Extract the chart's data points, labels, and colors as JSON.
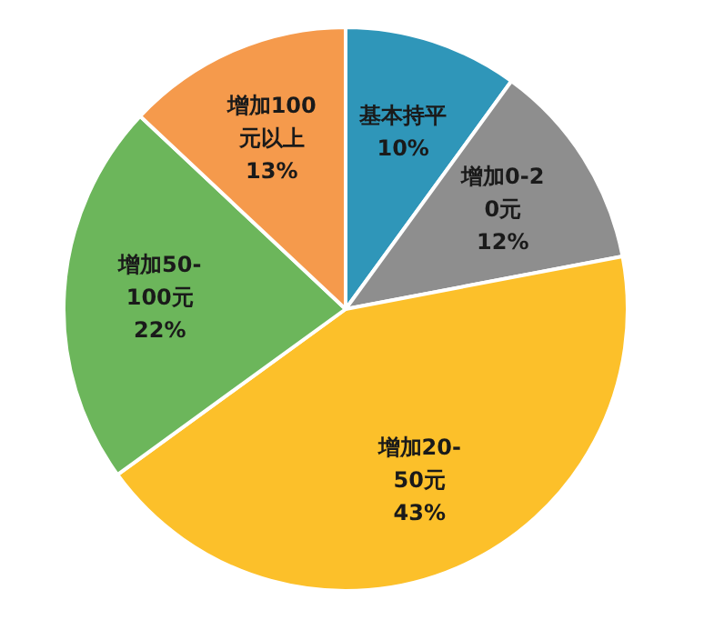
{
  "chart_data": {
    "type": "pie",
    "categories": [
      "基本持平",
      "增加0-20元",
      "增加20-50元",
      "增加50-100元",
      "增加100元以上"
    ],
    "values": [
      10,
      12,
      43,
      22,
      13
    ],
    "value_labels": [
      "10%",
      "12%",
      "43%",
      "22%",
      "13%"
    ],
    "colors": [
      "#2f96b9",
      "#8e8e8e",
      "#fcc02a",
      "#6cb65b",
      "#f59a4c"
    ],
    "legend": false
  }
}
